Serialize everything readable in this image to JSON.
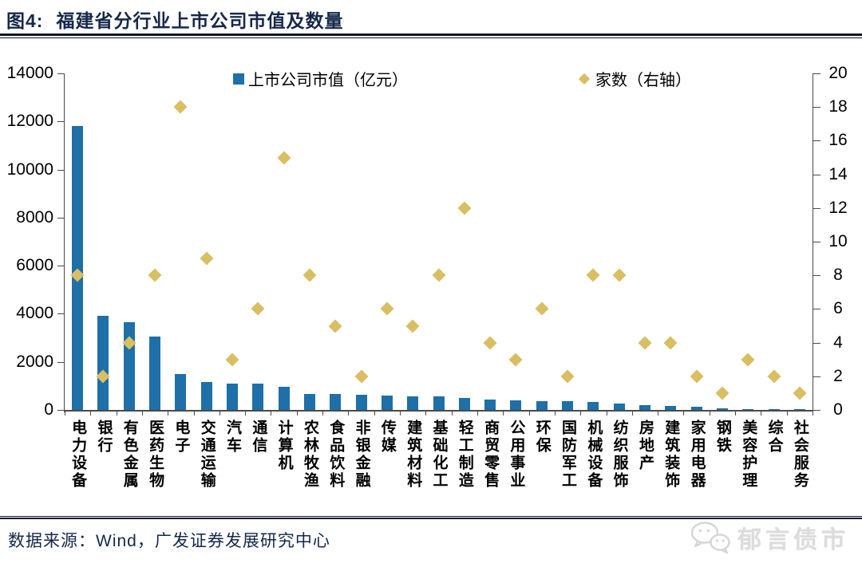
{
  "header": {
    "prefix": "图4:",
    "title": "福建省分行业上市公司市值及数量"
  },
  "legend": {
    "bar_label": "上市公司市值（亿元）",
    "marker_label": "家数（右轴）"
  },
  "footer": {
    "source": "数据来源：Wind，广发证券发展研究中心",
    "watermark": "郁言债市"
  },
  "colors": {
    "bar": "#1F6FA8",
    "marker": "#D9BE62",
    "title_text": "#16284A",
    "axis": "#4a4a4a",
    "watermark": "#DCDCDC"
  },
  "chart_data": {
    "type": "bar",
    "title": "图4: 福建省分行业上市公司市值及数量",
    "categories": [
      "电力设备",
      "银行",
      "有色金属",
      "医药生物",
      "电子",
      "交通运输",
      "汽车",
      "通信",
      "计算机",
      "农林牧渔",
      "食品饮料",
      "非银金融",
      "传媒",
      "建筑材料",
      "基础化工",
      "轻工制造",
      "商贸零售",
      "公用事业",
      "环保",
      "国防军工",
      "机械设备",
      "纺织服饰",
      "房地产",
      "建筑装饰",
      "家用电器",
      "钢铁",
      "美容护理",
      "综合",
      "社会服务"
    ],
    "series": [
      {
        "name": "上市公司市值（亿元）",
        "type": "bar",
        "axis": "left",
        "color": "#1F6FA8",
        "values": [
          11800,
          3900,
          3650,
          3050,
          1500,
          1150,
          1100,
          1080,
          950,
          680,
          650,
          640,
          610,
          580,
          550,
          500,
          430,
          400,
          380,
          360,
          330,
          250,
          210,
          170,
          120,
          70,
          45,
          25,
          15
        ]
      },
      {
        "name": "家数（右轴）",
        "type": "scatter",
        "marker": "diamond",
        "axis": "right",
        "color": "#D9BE62",
        "values": [
          8,
          2,
          4,
          8,
          18,
          9,
          3,
          6,
          15,
          8,
          5,
          2,
          6,
          5,
          8,
          12,
          4,
          3,
          6,
          2,
          8,
          8,
          4,
          4,
          2,
          1,
          3,
          2,
          1
        ]
      }
    ],
    "left_axis": {
      "min": 0,
      "max": 14000,
      "step": 2000,
      "ticks": [
        0,
        2000,
        4000,
        6000,
        8000,
        10000,
        12000,
        14000
      ]
    },
    "right_axis": {
      "min": 0,
      "max": 20,
      "step": 2,
      "ticks": [
        0,
        2,
        4,
        6,
        8,
        10,
        12,
        14,
        16,
        18,
        20
      ]
    },
    "grid": false,
    "legend_position": "top-inside"
  }
}
